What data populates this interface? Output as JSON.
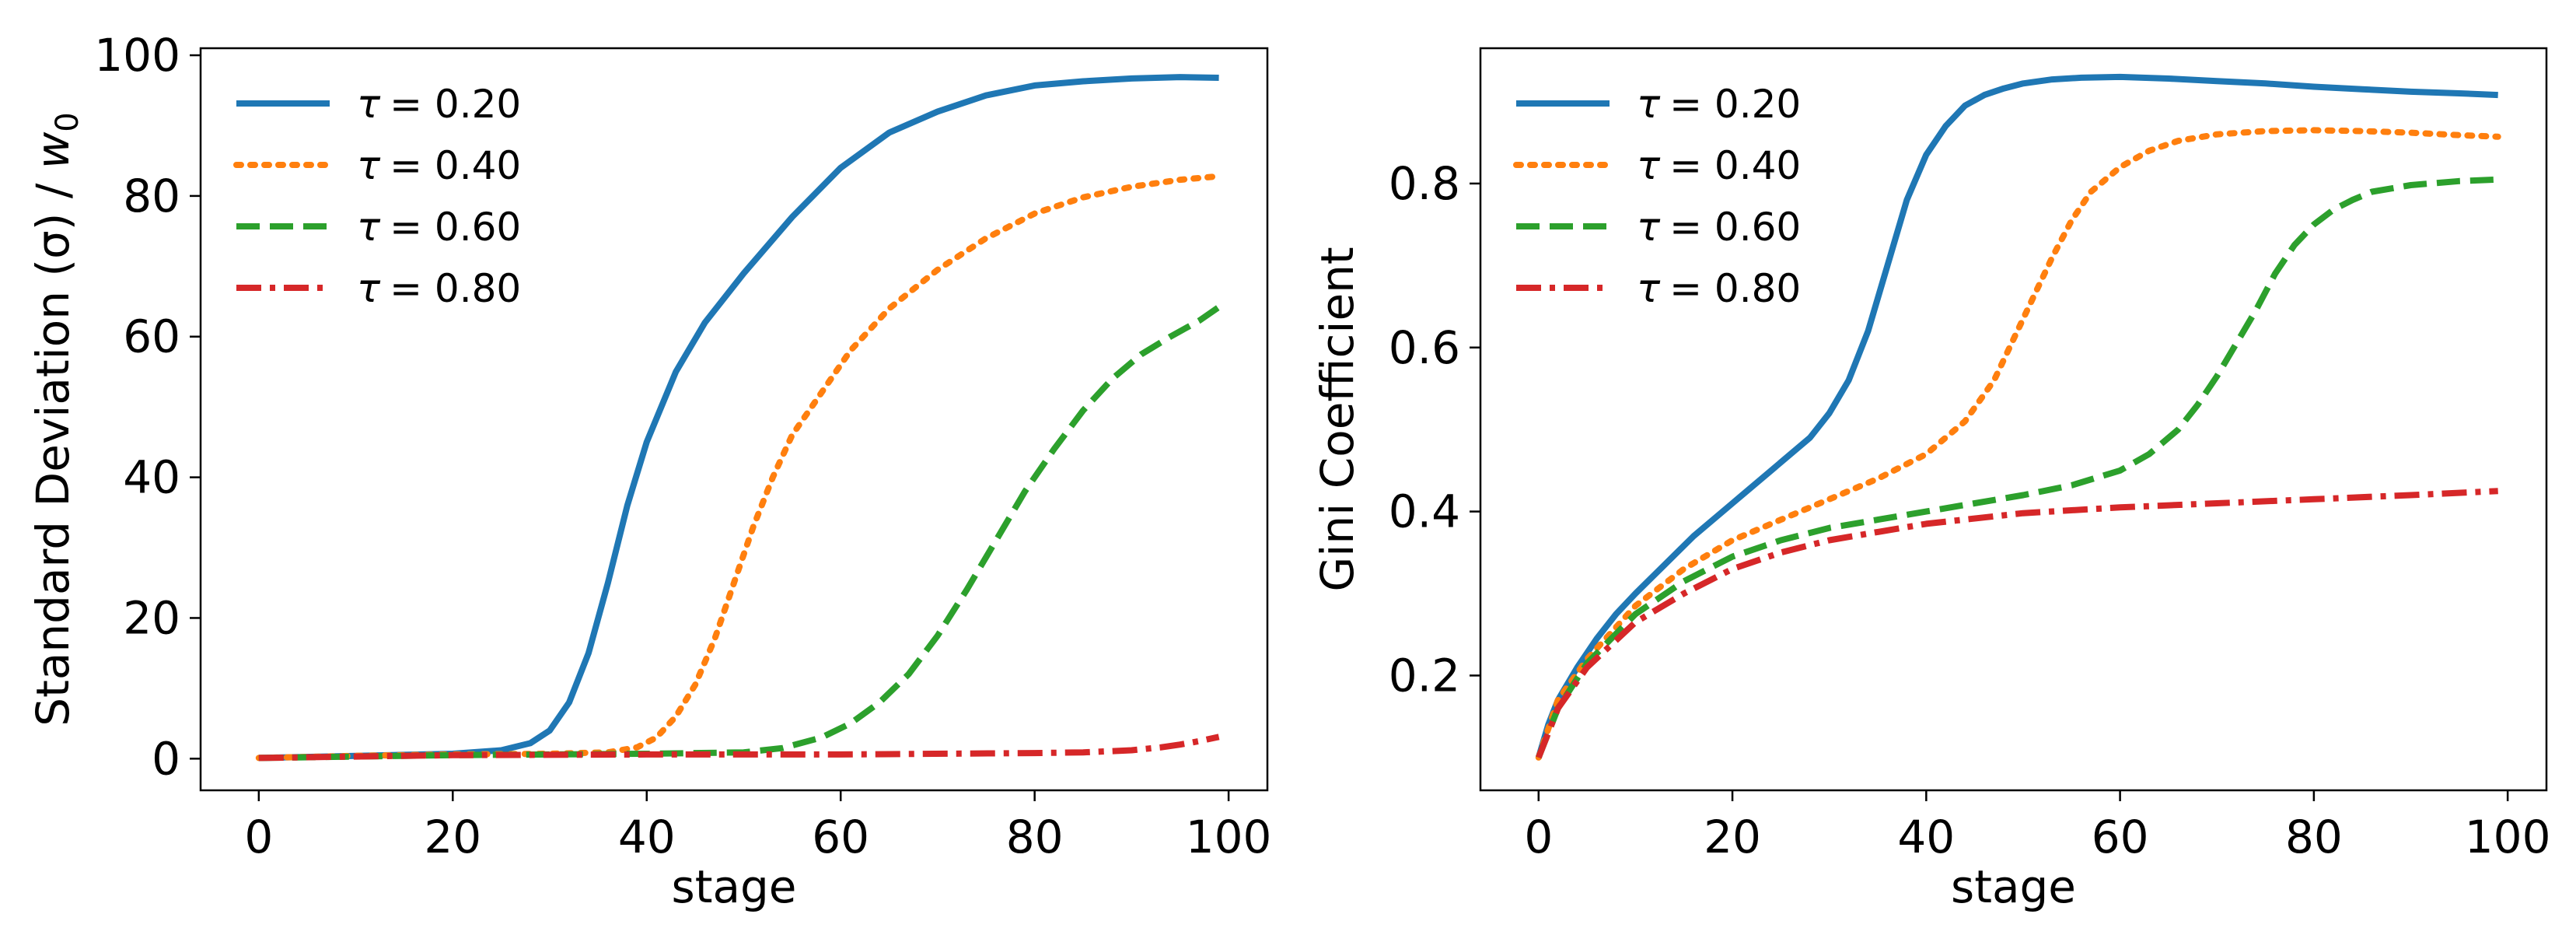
{
  "chart_data": [
    {
      "type": "line",
      "title": "",
      "xlabel": "stage",
      "ylabel": "Standard Deviation (σ) / w₀",
      "ylabel_parts": {
        "main": "Standard Deviation (σ) / ",
        "var": "w",
        "sub": "0"
      },
      "xlim": [
        -6,
        104
      ],
      "ylim": [
        -4.5,
        101
      ],
      "xticks": [
        0,
        20,
        40,
        60,
        80,
        100
      ],
      "yticks": [
        0,
        20,
        40,
        60,
        80,
        100
      ],
      "xtick_labels": [
        "0",
        "20",
        "40",
        "60",
        "80",
        "100"
      ],
      "ytick_labels": [
        "0",
        "20",
        "40",
        "60",
        "80",
        "100"
      ],
      "grid": false,
      "legend_position": "upper-left",
      "series": [
        {
          "name": "τ = 0.20",
          "tau_symbol": "τ",
          "tau_value": "= 0.20",
          "color": "#1f77b4",
          "dash": "solid",
          "x": [
            0,
            10,
            20,
            25,
            28,
            30,
            32,
            34,
            36,
            38,
            40,
            43,
            46,
            50,
            55,
            60,
            65,
            70,
            75,
            80,
            85,
            90,
            95,
            99
          ],
          "y": [
            0.1,
            0.4,
            0.7,
            1.2,
            2.2,
            4.0,
            8.0,
            15.0,
            25.0,
            36.0,
            45.0,
            55.0,
            62.0,
            69.0,
            77.0,
            84.0,
            89.0,
            92.0,
            94.3,
            95.7,
            96.3,
            96.7,
            96.9,
            96.8
          ]
        },
        {
          "name": "τ = 0.40",
          "tau_symbol": "τ",
          "tau_value": "= 0.40",
          "color": "#ff7f0e",
          "dash": "dotted",
          "x": [
            0,
            10,
            20,
            30,
            36,
            39,
            41,
            43,
            45,
            47,
            49,
            51,
            53,
            55,
            58,
            61,
            65,
            70,
            75,
            80,
            85,
            90,
            95,
            99
          ],
          "y": [
            0.1,
            0.4,
            0.6,
            0.7,
            0.9,
            1.6,
            3.0,
            6.0,
            10.5,
            17.0,
            25.0,
            33.0,
            40.0,
            46.0,
            52.0,
            58.0,
            64.0,
            69.5,
            74.0,
            77.5,
            79.8,
            81.3,
            82.3,
            82.8
          ]
        },
        {
          "name": "τ = 0.60",
          "tau_symbol": "τ",
          "tau_value": "= 0.60",
          "color": "#2ca02c",
          "dash": "dashed",
          "x": [
            0,
            20,
            40,
            50,
            54,
            58,
            61,
            64,
            67,
            70,
            73,
            76,
            79,
            82,
            85,
            88,
            91,
            94,
            97,
            99
          ],
          "y": [
            0.1,
            0.5,
            0.7,
            0.9,
            1.5,
            3.0,
            5.0,
            8.0,
            12.0,
            17.5,
            24.0,
            31.0,
            38.0,
            44.0,
            49.5,
            54.0,
            57.5,
            60.0,
            62.3,
            64.2
          ]
        },
        {
          "name": "τ = 0.80",
          "tau_symbol": "τ",
          "tau_value": "= 0.80",
          "color": "#d62728",
          "dash": "dashdot",
          "x": [
            0,
            10,
            20,
            40,
            60,
            80,
            85,
            90,
            93,
            95,
            97,
            99
          ],
          "y": [
            0.1,
            0.3,
            0.5,
            0.6,
            0.6,
            0.8,
            0.9,
            1.2,
            1.6,
            2.0,
            2.5,
            3.1
          ]
        }
      ]
    },
    {
      "type": "line",
      "title": "",
      "xlabel": "stage",
      "ylabel": "Gini Coefficient",
      "xlim": [
        -6,
        104
      ],
      "ylim": [
        0.06,
        0.965
      ],
      "xticks": [
        0,
        20,
        40,
        60,
        80,
        100
      ],
      "yticks": [
        0.2,
        0.4,
        0.6,
        0.8
      ],
      "xtick_labels": [
        "0",
        "20",
        "40",
        "60",
        "80",
        "100"
      ],
      "ytick_labels": [
        "0.2",
        "0.4",
        "0.6",
        "0.8"
      ],
      "grid": false,
      "legend_position": "upper-left",
      "series": [
        {
          "name": "τ = 0.20",
          "tau_symbol": "τ",
          "tau_value": "= 0.20",
          "color": "#1f77b4",
          "dash": "solid",
          "x": [
            0,
            1,
            2,
            4,
            6,
            8,
            10,
            13,
            16,
            20,
            24,
            28,
            30,
            32,
            34,
            36,
            38,
            40,
            42,
            44,
            46,
            48,
            50,
            53,
            56,
            60,
            65,
            70,
            75,
            80,
            85,
            90,
            95,
            99
          ],
          "y": [
            0.1,
            0.14,
            0.17,
            0.21,
            0.245,
            0.275,
            0.3,
            0.335,
            0.37,
            0.41,
            0.45,
            0.49,
            0.52,
            0.56,
            0.62,
            0.7,
            0.78,
            0.835,
            0.87,
            0.895,
            0.908,
            0.916,
            0.922,
            0.927,
            0.929,
            0.93,
            0.928,
            0.925,
            0.922,
            0.918,
            0.915,
            0.912,
            0.91,
            0.908
          ]
        },
        {
          "name": "τ = 0.40",
          "tau_symbol": "τ",
          "tau_value": "= 0.40",
          "color": "#ff7f0e",
          "dash": "dotted",
          "x": [
            0,
            2,
            5,
            10,
            15,
            20,
            25,
            30,
            35,
            40,
            44,
            47,
            49,
            51,
            53,
            55,
            57,
            60,
            63,
            66,
            70,
            75,
            80,
            85,
            90,
            95,
            99
          ],
          "y": [
            0.1,
            0.17,
            0.22,
            0.285,
            0.33,
            0.365,
            0.39,
            0.415,
            0.44,
            0.47,
            0.51,
            0.56,
            0.61,
            0.66,
            0.71,
            0.755,
            0.79,
            0.82,
            0.84,
            0.852,
            0.86,
            0.864,
            0.865,
            0.864,
            0.862,
            0.859,
            0.857
          ]
        },
        {
          "name": "τ = 0.60",
          "tau_symbol": "τ",
          "tau_value": "= 0.60",
          "color": "#2ca02c",
          "dash": "dashed",
          "x": [
            0,
            2,
            5,
            10,
            15,
            20,
            25,
            30,
            35,
            40,
            45,
            50,
            55,
            60,
            63,
            66,
            68,
            70,
            72,
            74,
            76,
            78,
            80,
            82,
            84,
            86,
            90,
            95,
            99
          ],
          "y": [
            0.1,
            0.16,
            0.215,
            0.275,
            0.315,
            0.345,
            0.365,
            0.38,
            0.39,
            0.4,
            0.41,
            0.42,
            0.432,
            0.45,
            0.47,
            0.5,
            0.53,
            0.565,
            0.605,
            0.645,
            0.69,
            0.725,
            0.75,
            0.768,
            0.78,
            0.79,
            0.798,
            0.803,
            0.805
          ]
        },
        {
          "name": "τ = 0.80",
          "tau_symbol": "τ",
          "tau_value": "= 0.80",
          "color": "#d62728",
          "dash": "dashdot",
          "x": [
            0,
            2,
            5,
            10,
            15,
            20,
            25,
            30,
            35,
            40,
            50,
            60,
            70,
            80,
            90,
            99
          ],
          "y": [
            0.1,
            0.16,
            0.21,
            0.265,
            0.3,
            0.33,
            0.35,
            0.365,
            0.375,
            0.385,
            0.398,
            0.405,
            0.41,
            0.415,
            0.42,
            0.425
          ]
        }
      ]
    }
  ]
}
